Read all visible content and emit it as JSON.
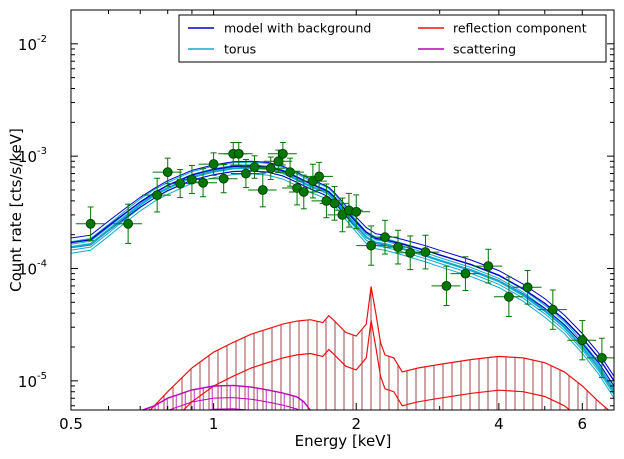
{
  "chart_data": {
    "type": "line",
    "xlabel": "Energy [keV]",
    "ylabel": "Count rate [cts/s/keV]",
    "x_scale": "log",
    "y_scale": "log",
    "xlim": [
      0.5,
      7.0
    ],
    "ylim": [
      5.5e-06,
      0.02
    ],
    "x_ticks": [
      {
        "value": 0.5,
        "label": "0.5"
      },
      {
        "value": 1,
        "label": "1"
      },
      {
        "value": 2,
        "label": "2"
      },
      {
        "value": 4,
        "label": "4"
      },
      {
        "value": 6,
        "label": "6"
      }
    ],
    "y_ticks": [
      {
        "value": 1e-05,
        "base": "10",
        "exp": "-5"
      },
      {
        "value": 0.0001,
        "base": "10",
        "exp": "-4"
      },
      {
        "value": 0.001,
        "base": "10",
        "exp": "-3"
      },
      {
        "value": 0.01,
        "base": "10",
        "exp": "-2"
      }
    ],
    "legend": {
      "position": "top-right",
      "columns": 2,
      "entries": [
        {
          "label": "model with background",
          "color": "#0000cc"
        },
        {
          "label": "reflection component",
          "color": "#ee1111"
        },
        {
          "label": "torus",
          "color": "#11aacc"
        },
        {
          "label": "scattering",
          "color": "#bb00bb"
        }
      ]
    },
    "colors": {
      "model": "#0000cc",
      "torus": "#11aacc",
      "reflection": "#ee1111",
      "scattering": "#bb00bb",
      "data": "#007700",
      "errorbar": "#007700",
      "hatch": "#8b1a1a"
    },
    "series": [
      {
        "name": "model with background",
        "x": [
          0.5,
          0.55,
          0.6,
          0.65,
          0.7,
          0.75,
          0.8,
          0.9,
          1.0,
          1.1,
          1.2,
          1.3,
          1.4,
          1.5,
          1.6,
          1.7,
          1.75,
          1.8,
          1.9,
          2.0,
          2.1,
          2.2,
          2.3,
          2.5,
          2.8,
          3.0,
          3.5,
          4.0,
          4.5,
          5.0,
          5.5,
          6.0,
          6.5,
          7.0
        ],
        "y": [
          0.00017,
          0.00018,
          0.00024,
          0.00031,
          0.00039,
          0.00047,
          0.00055,
          0.00068,
          0.00076,
          0.00081,
          0.00082,
          0.0008,
          0.00074,
          0.00065,
          0.00057,
          0.00051,
          0.00048,
          0.00043,
          0.00033,
          0.00026,
          0.00021,
          0.000185,
          0.00018,
          0.000165,
          0.000145,
          0.000132,
          0.000108,
          8.7e-05,
          6.6e-05,
          4.9e-05,
          3.5e-05,
          2.4e-05,
          1.6e-05,
          1e-05
        ]
      },
      {
        "name": "torus",
        "x": [
          0.5,
          0.55,
          0.6,
          0.65,
          0.7,
          0.75,
          0.8,
          0.9,
          1.0,
          1.1,
          1.2,
          1.3,
          1.4,
          1.5,
          1.6,
          1.7,
          1.75,
          1.8,
          1.9,
          2.0,
          2.1,
          2.2,
          2.3,
          2.5,
          2.8,
          3.0,
          3.5,
          4.0,
          4.5,
          5.0,
          5.5,
          6.0,
          6.5,
          7.0
        ],
        "y": [
          0.000155,
          0.000165,
          0.00022,
          0.00029,
          0.00037,
          0.00045,
          0.00052,
          0.00065,
          0.00073,
          0.00078,
          0.00079,
          0.00077,
          0.00071,
          0.00062,
          0.00054,
          0.00049,
          0.00046,
          0.00041,
          0.00031,
          0.00024,
          0.00019,
          0.00017,
          0.000165,
          0.00015,
          0.00013,
          0.000118,
          9.6e-05,
          7.7e-05,
          5.8e-05,
          4.2e-05,
          3e-05,
          2e-05,
          1.3e-05,
          8e-06
        ]
      },
      {
        "name": "reflection component",
        "x": [
          0.72,
          0.8,
          0.9,
          1.0,
          1.1,
          1.2,
          1.3,
          1.4,
          1.5,
          1.6,
          1.7,
          1.75,
          1.8,
          1.9,
          2.0,
          2.1,
          2.15,
          2.2,
          2.25,
          2.3,
          2.4,
          2.5,
          2.7,
          3.0,
          3.5,
          4.0,
          4.5,
          5.0,
          5.5,
          6.0,
          6.5,
          7.0
        ],
        "y": [
          5e-06,
          8e-06,
          1.3e-05,
          1.8e-05,
          2.2e-05,
          2.6e-05,
          2.9e-05,
          3.2e-05,
          3.4e-05,
          3.5e-05,
          3.3e-05,
          3.8e-05,
          3.4e-05,
          2.7e-05,
          2.5e-05,
          3.2e-05,
          6.9e-05,
          4e-05,
          2.2e-05,
          1.7e-05,
          1.6e-05,
          1.2e-05,
          1.3e-05,
          1.4e-05,
          1.55e-05,
          1.65e-05,
          1.6e-05,
          1.45e-05,
          1.2e-05,
          9e-06,
          6.5e-06,
          5e-06
        ]
      },
      {
        "name": "scattering",
        "x": [
          0.7,
          0.75,
          0.8,
          0.9,
          1.0,
          1.1,
          1.2,
          1.3,
          1.4,
          1.5,
          1.55,
          1.6
        ],
        "y": [
          5.4e-06,
          6e-06,
          7e-06,
          8.3e-06,
          9e-06,
          9.1e-06,
          8.8e-06,
          8.3e-06,
          7.8e-06,
          7.2e-06,
          6.5e-06,
          5.5e-06
        ]
      }
    ],
    "data_points": {
      "x": [
        0.55,
        0.66,
        0.76,
        0.8,
        0.85,
        0.9,
        0.95,
        1.0,
        1.05,
        1.1,
        1.13,
        1.17,
        1.22,
        1.27,
        1.32,
        1.37,
        1.4,
        1.45,
        1.5,
        1.55,
        1.62,
        1.67,
        1.73,
        1.8,
        1.87,
        1.93,
        2.0,
        2.15,
        2.3,
        2.45,
        2.6,
        2.8,
        3.1,
        3.4,
        3.8,
        4.2,
        4.6,
        5.2,
        6.0,
        6.6
      ],
      "y": [
        0.00025,
        0.00025,
        0.00045,
        0.00072,
        0.00057,
        0.00062,
        0.00058,
        0.00085,
        0.00063,
        0.00105,
        0.00105,
        0.0007,
        0.0008,
        0.0005,
        0.00078,
        0.0009,
        0.00105,
        0.00072,
        0.00052,
        0.00048,
        0.0006,
        0.00066,
        0.0004,
        0.00038,
        0.0003,
        0.00033,
        0.00032,
        0.00016,
        0.00019,
        0.000155,
        0.000138,
        0.00014,
        7e-05,
        9e-05,
        0.000105,
        5.6e-05,
        6.8e-05,
        4.3e-05,
        2.3e-05,
        1.6e-05
      ],
      "yerr": [
        0.3,
        0.35,
        0.3,
        0.25,
        0.25,
        0.25,
        0.25,
        0.2,
        0.25,
        0.2,
        0.2,
        0.25,
        0.2,
        0.3,
        0.2,
        0.2,
        0.2,
        0.25,
        0.3,
        0.3,
        0.3,
        0.25,
        0.3,
        0.3,
        0.3,
        0.3,
        0.3,
        0.35,
        0.3,
        0.3,
        0.3,
        0.3,
        0.35,
        0.3,
        0.3,
        0.35,
        0.3,
        0.35,
        0.35,
        0.35
      ]
    }
  }
}
